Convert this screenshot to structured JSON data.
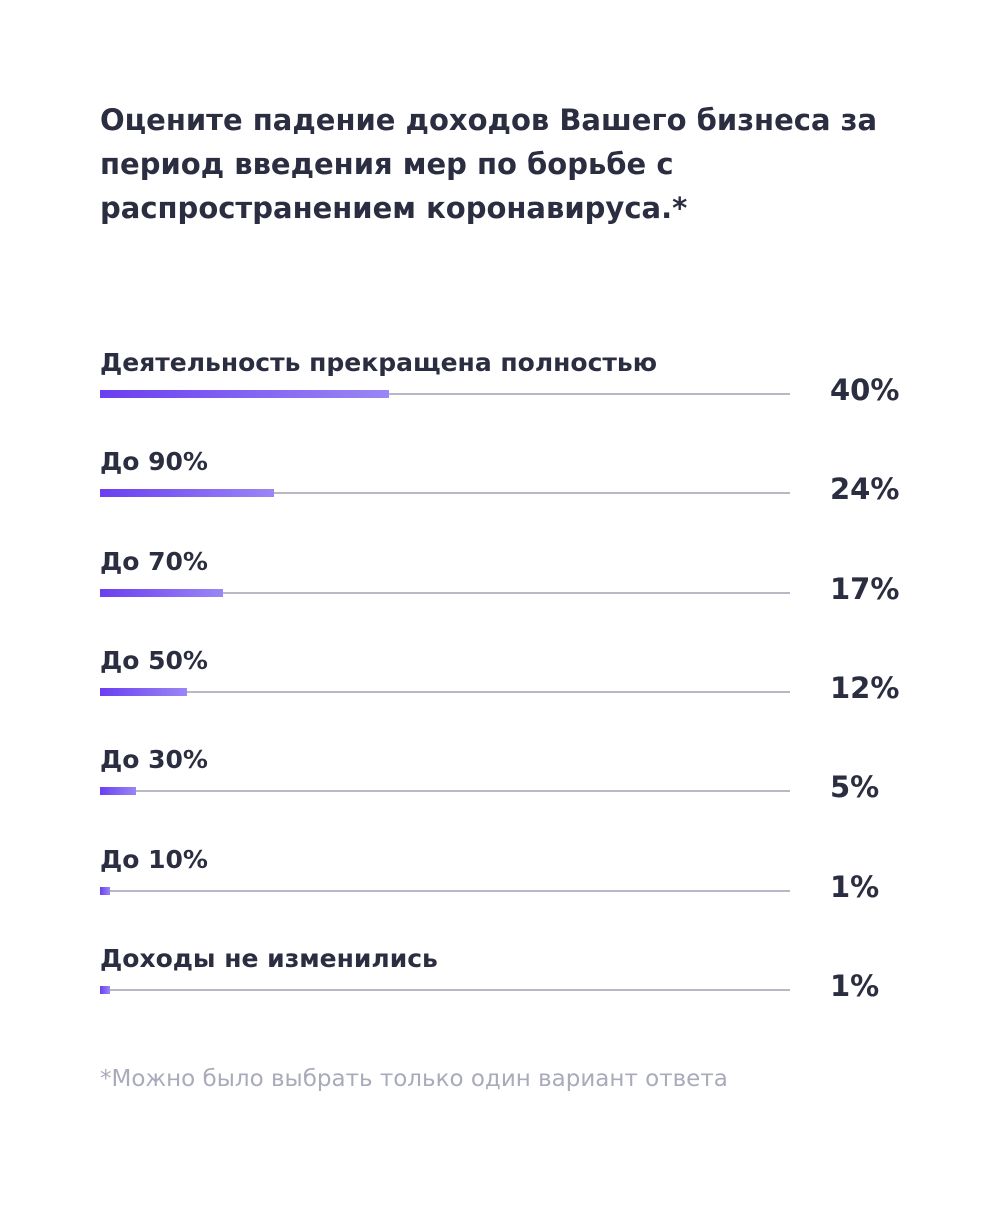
{
  "chart_data": {
    "type": "bar",
    "orientation": "horizontal",
    "title": "Оцените падение доходов Вашего бизнеса за период введения мер по борьбе с распространением коронавируса.*",
    "categories": [
      "Деятельность прекращена полностью",
      "До 90%",
      "До 70%",
      "До 50%",
      "До 30%",
      "До 10%",
      "Доходы не изменились"
    ],
    "values": [
      40,
      24,
      17,
      12,
      5,
      1,
      1
    ],
    "value_labels": [
      "40%",
      "24%",
      "17%",
      "12%",
      "5%",
      "1%",
      "1%"
    ],
    "xlim": [
      0,
      100
    ],
    "unit": "%",
    "grid": false,
    "legend": "none",
    "colors": {
      "bar_start": "#6a3ff0",
      "bar_end": "#9a86f5",
      "track": "#b7b9c6",
      "text": "#2b2d40"
    }
  },
  "footnote": "*Можно было выбрать только один вариант ответа"
}
